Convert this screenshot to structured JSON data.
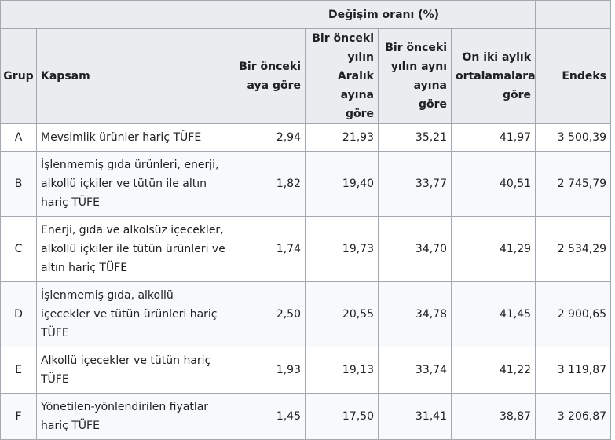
{
  "table": {
    "group_header": "Değişim oranı (%)",
    "columns": {
      "grup": "Grup",
      "kapsam": "Kapsam",
      "aylik": "Bir önceki aya göre",
      "aralik": "Bir önceki yılın Aralık ayına göre",
      "yillik": "Bir önceki yılın aynı ayına göre",
      "ortalama": "On iki aylık ortalamalara göre",
      "endeks": "Endeks"
    },
    "rows": [
      {
        "grup": "A",
        "kapsam": "Mevsimlik ürünler hariç TÜFE",
        "aylik": "2,94",
        "aralik": "21,93",
        "yillik": "35,21",
        "ortalama": "41,97",
        "endeks": "3 500,39"
      },
      {
        "grup": "B",
        "kapsam": "İşlenmemiş gıda ürünleri, enerji, alkollü içkiler ve tütün ile altın hariç TÜFE",
        "aylik": "1,82",
        "aralik": "19,40",
        "yillik": "33,77",
        "ortalama": "40,51",
        "endeks": "2 745,79"
      },
      {
        "grup": "C",
        "kapsam": "Enerji, gıda ve alkolsüz içecekler, alkollü içkiler ile tütün ürünleri ve altın hariç TÜFE",
        "aylik": "1,74",
        "aralik": "19,73",
        "yillik": "34,70",
        "ortalama": "41,29",
        "endeks": "2 534,29"
      },
      {
        "grup": "D",
        "kapsam": "İşlenmemiş gıda, alkollü içecekler ve tütün ürünleri hariç TÜFE",
        "aylik": "2,50",
        "aralik": "20,55",
        "yillik": "34,78",
        "ortalama": "41,45",
        "endeks": "2 900,65"
      },
      {
        "grup": "E",
        "kapsam": "Alkollü içecekler ve tütün hariç TÜFE",
        "aylik": "1,93",
        "aralik": "19,13",
        "yillik": "33,74",
        "ortalama": "41,22",
        "endeks": "3 119,87"
      },
      {
        "grup": "F",
        "kapsam": "Yönetilen-yönlendirilen fiyatlar hariç TÜFE",
        "aylik": "1,45",
        "aralik": "17,50",
        "yillik": "31,41",
        "ortalama": "38,87",
        "endeks": "3 206,87"
      }
    ]
  }
}
